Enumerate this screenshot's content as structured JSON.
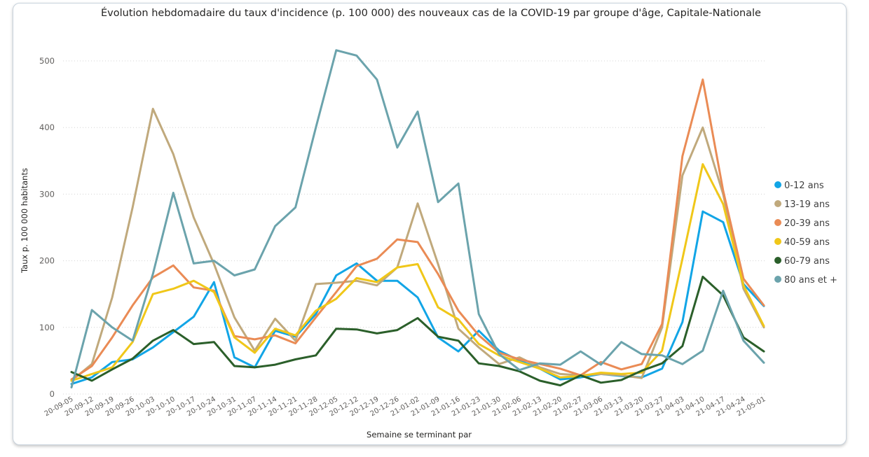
{
  "chart_data": {
    "type": "line",
    "title": "Évolution hebdomadaire du taux d'incidence (p. 100 000) des nouveaux cas de la COVID-19 par groupe d'âge, Capitale-Nationale",
    "xlabel": "Semaine se terminant par",
    "ylabel": "Taux p. 100 000 habitants",
    "ylim": [
      0,
      520
    ],
    "yticks": [
      0,
      100,
      200,
      300,
      400,
      500
    ],
    "grid": true,
    "legend_position": "right",
    "categories": [
      "20-09-05",
      "20-09-12",
      "20-09-19",
      "20-09-26",
      "20-10-03",
      "20-10-10",
      "20-10-17",
      "20-10-24",
      "20-10-31",
      "20-11-07",
      "20-11-14",
      "20-11-21",
      "20-11-28",
      "20-12-05",
      "20-12-12",
      "20-12-19",
      "20-12-26",
      "21-01-02",
      "21-01-09",
      "21-01-16",
      "21-01-23",
      "21-01-30",
      "21-02-06",
      "21-02-13",
      "21-02-20",
      "21-02-27",
      "21-03-06",
      "21-03-13",
      "21-03-20",
      "21-03-27",
      "21-04-03",
      "21-04-10",
      "21-04-17",
      "21-04-24",
      "21-05-01"
    ],
    "series": [
      {
        "name": "0-12 ans",
        "color": "#12a5e6",
        "values": [
          15,
          25,
          48,
          52,
          70,
          93,
          116,
          168,
          55,
          40,
          95,
          86,
          120,
          178,
          196,
          170,
          170,
          145,
          85,
          64,
          95,
          65,
          50,
          38,
          22,
          25,
          30,
          27,
          25,
          38,
          108,
          274,
          258,
          165,
          132
        ]
      },
      {
        "name": "13-19 ans",
        "color": "#c0a97c",
        "values": [
          20,
          45,
          145,
          280,
          428,
          360,
          265,
          195,
          115,
          65,
          113,
          80,
          165,
          167,
          170,
          163,
          190,
          286,
          195,
          98,
          70,
          45,
          55,
          40,
          30,
          28,
          30,
          28,
          24,
          100,
          328,
          400,
          300,
          158,
          100
        ]
      },
      {
        "name": "20-39 ans",
        "color": "#ea8b55",
        "values": [
          22,
          42,
          85,
          133,
          175,
          193,
          160,
          155,
          87,
          82,
          88,
          76,
          115,
          153,
          192,
          203,
          232,
          228,
          180,
          125,
          88,
          62,
          52,
          45,
          38,
          28,
          48,
          37,
          45,
          105,
          357,
          472,
          305,
          173,
          133
        ]
      },
      {
        "name": "40-59 ans",
        "color": "#f0c719",
        "values": [
          20,
          30,
          40,
          78,
          150,
          158,
          170,
          153,
          85,
          62,
          98,
          88,
          125,
          143,
          174,
          168,
          190,
          195,
          130,
          112,
          75,
          58,
          48,
          38,
          25,
          27,
          32,
          30,
          32,
          65,
          203,
          345,
          285,
          163,
          102
        ]
      },
      {
        "name": "60-79 ans",
        "color": "#2b5f2a",
        "values": [
          33,
          20,
          37,
          53,
          80,
          96,
          75,
          78,
          42,
          40,
          44,
          52,
          58,
          98,
          97,
          91,
          96,
          114,
          86,
          80,
          46,
          42,
          34,
          20,
          13,
          28,
          17,
          21,
          35,
          46,
          72,
          176,
          148,
          85,
          64
        ]
      },
      {
        "name": "80 ans et +",
        "color": "#6ba3ac",
        "values": [
          10,
          126,
          100,
          80,
          180,
          302,
          196,
          200,
          178,
          187,
          252,
          280,
          400,
          516,
          508,
          472,
          370,
          424,
          288,
          316,
          120,
          60,
          36,
          46,
          44,
          64,
          44,
          78,
          60,
          58,
          45,
          65,
          155,
          80,
          47
        ]
      }
    ]
  }
}
